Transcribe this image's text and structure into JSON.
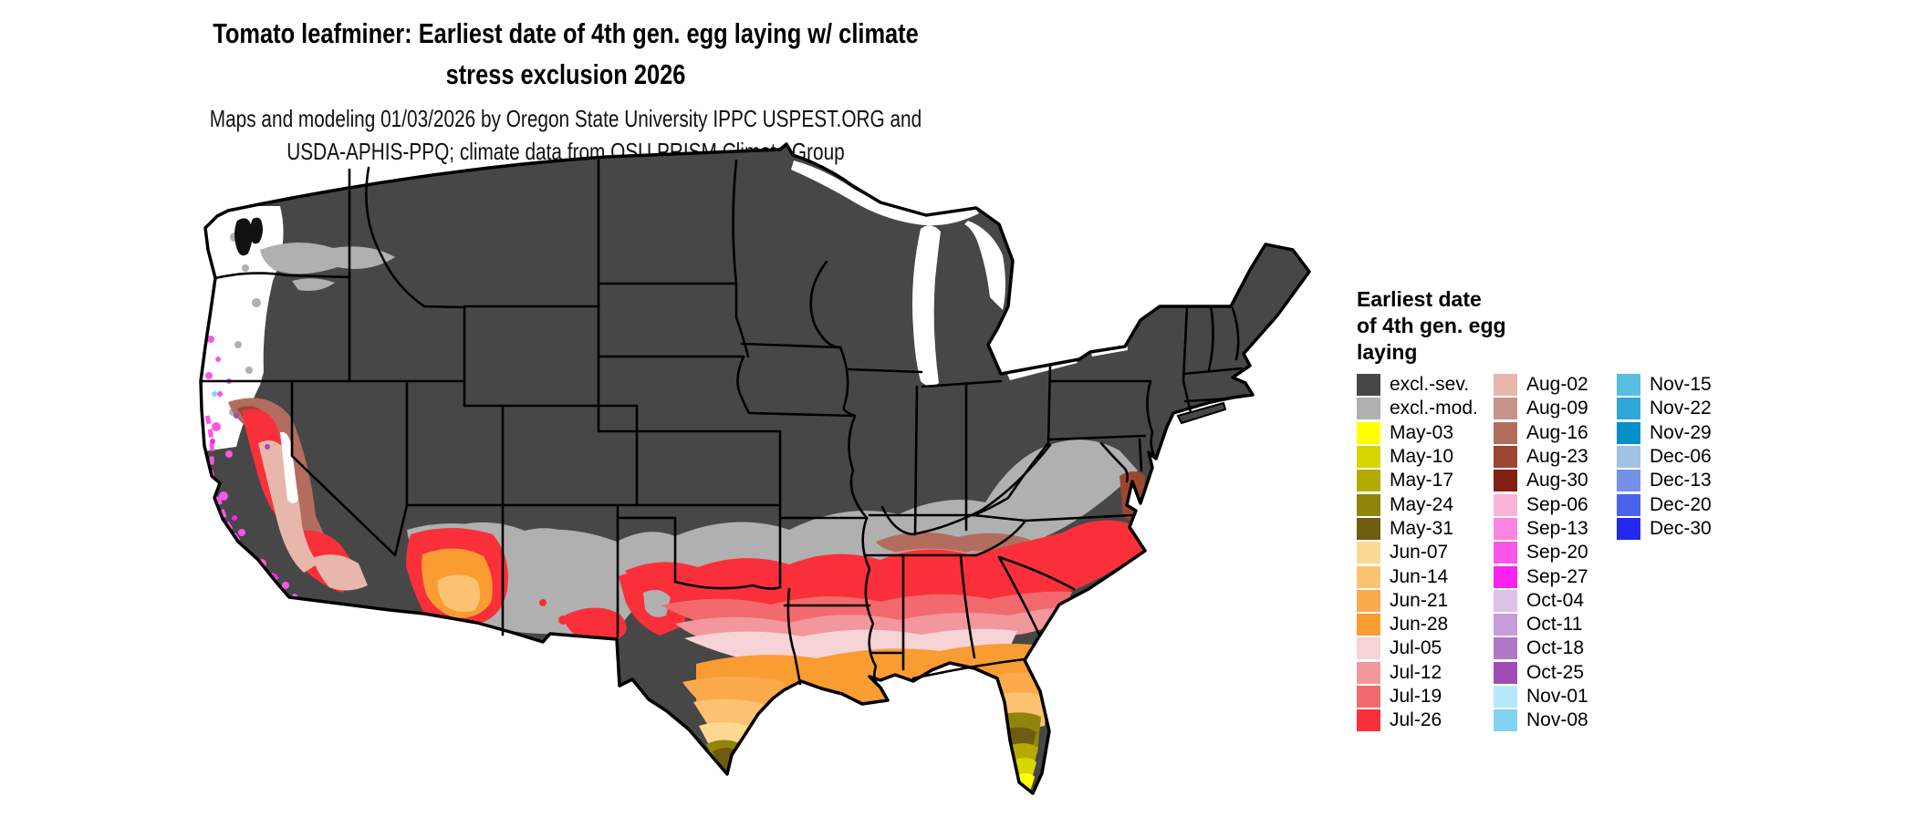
{
  "header": {
    "title_lines": [
      "Tomato leafminer: Earliest date of 4th gen. egg laying w/ climate",
      "stress exclusion 2026"
    ],
    "subtitle_lines": [
      "Maps and modeling 01/03/2026 by Oregon State University IPPC USPEST.ORG and",
      "USDA-APHIS-PPQ; climate data from OSU PRISM Climate Group"
    ]
  },
  "legend": {
    "title_lines": [
      "Earliest date",
      "of 4th gen. egg",
      "laying"
    ],
    "columns": [
      [
        {
          "label": "excl.-sev.",
          "color": "#474747"
        },
        {
          "label": "excl.-mod.",
          "color": "#b0b0b0"
        },
        {
          "label": "May-03",
          "color": "#ffff00"
        },
        {
          "label": "May-10",
          "color": "#d6d600"
        },
        {
          "label": "May-17",
          "color": "#b5ab00"
        },
        {
          "label": "May-24",
          "color": "#8f850a"
        },
        {
          "label": "May-31",
          "color": "#6e5c12"
        },
        {
          "label": "Jun-07",
          "color": "#fcd992"
        },
        {
          "label": "Jun-14",
          "color": "#fcc271"
        },
        {
          "label": "Jun-21",
          "color": "#fbaa4e"
        },
        {
          "label": "Jun-28",
          "color": "#f99d32"
        },
        {
          "label": "Jul-05",
          "color": "#f5d3d6"
        },
        {
          "label": "Jul-12",
          "color": "#f2979c"
        },
        {
          "label": "Jul-19",
          "color": "#f26a6d"
        },
        {
          "label": "Jul-26",
          "color": "#f9303a"
        }
      ],
      [
        {
          "label": "Aug-02",
          "color": "#e7b7ab"
        },
        {
          "label": "Aug-09",
          "color": "#c9928a"
        },
        {
          "label": "Aug-16",
          "color": "#b36d5e"
        },
        {
          "label": "Aug-23",
          "color": "#9c4631"
        },
        {
          "label": "Aug-30",
          "color": "#821f10"
        },
        {
          "label": "Sep-06",
          "color": "#fbb3d8"
        },
        {
          "label": "Sep-13",
          "color": "#fb85e0"
        },
        {
          "label": "Sep-20",
          "color": "#fb55e9"
        },
        {
          "label": "Sep-27",
          "color": "#fb22f1"
        },
        {
          "label": "Oct-04",
          "color": "#ddc2e8"
        },
        {
          "label": "Oct-11",
          "color": "#c79cd8"
        },
        {
          "label": "Oct-18",
          "color": "#b177c8"
        },
        {
          "label": "Oct-25",
          "color": "#a04cb4"
        },
        {
          "label": "Nov-01",
          "color": "#b5e9fb"
        },
        {
          "label": "Nov-08",
          "color": "#82d2f0"
        }
      ],
      [
        {
          "label": "Nov-15",
          "color": "#56bfe2"
        },
        {
          "label": "Nov-22",
          "color": "#2da8d8"
        },
        {
          "label": "Nov-29",
          "color": "#0590cb"
        },
        {
          "label": "Dec-06",
          "color": "#a2c2e5"
        },
        {
          "label": "Dec-13",
          "color": "#7490e8"
        },
        {
          "label": "Dec-20",
          "color": "#4a63ed"
        },
        {
          "label": "Dec-30",
          "color": "#2428f0"
        }
      ]
    ]
  },
  "map": {
    "region": "Contiguous United States",
    "colors": {
      "excluded_severe": "#474747",
      "excluded_moderate": "#b0b0b0",
      "no_data_coastal_pnw": "#ffffff",
      "state_border": "#000000",
      "water": "#ffffff"
    }
  }
}
